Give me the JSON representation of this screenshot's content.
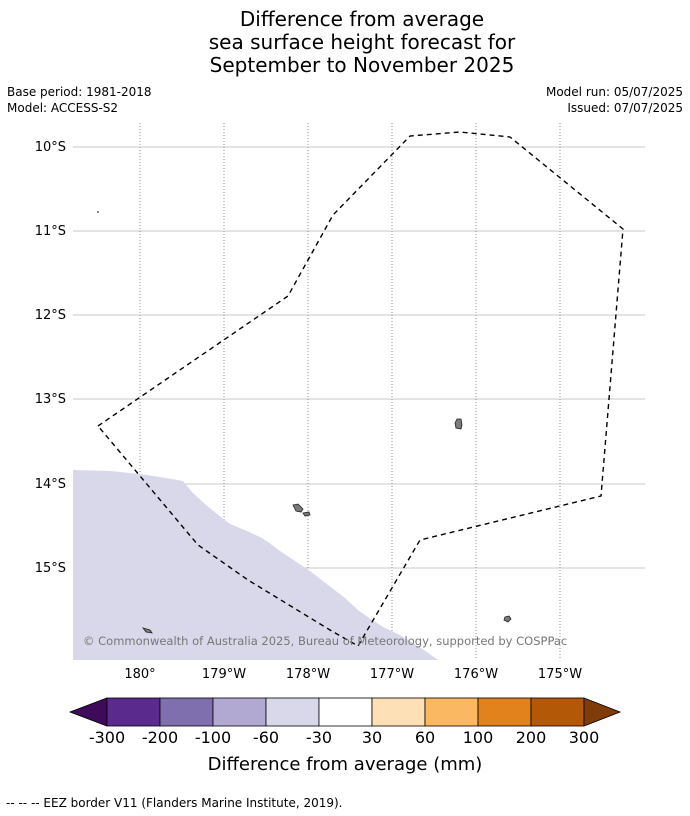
{
  "title": {
    "line1": "Difference from average",
    "line2": "sea surface height forecast for",
    "line3": "September to November 2025"
  },
  "meta": {
    "base_period": "Base period: 1981-2018",
    "model": "Model: ACCESS-S2",
    "model_run": "Model run: 05/07/2025",
    "issued": "Issued: 07/07/2025"
  },
  "map": {
    "lat_labels": [
      "10°S",
      "11°S",
      "12°S",
      "13°S",
      "14°S",
      "15°S"
    ],
    "lon_labels": [
      "180°",
      "179°W",
      "178°W",
      "177°W",
      "176°W",
      "175°W"
    ],
    "copyright": "© Commonwealth of Australia 2025, Bureau of Meteorology, supported by COSPPac",
    "anomaly_fill_color": "#d8d8ea",
    "land_color": "#7a7a7a"
  },
  "colorbar": {
    "labels": [
      "-300",
      "-200",
      "-100",
      "-60",
      "-30",
      "30",
      "60",
      "100",
      "200",
      "300"
    ],
    "colors": [
      "#3f0a5a",
      "#5a2a8c",
      "#7f6fae",
      "#b1a9d2",
      "#d8d8ea",
      "#ffffff",
      "#fde0b6",
      "#fbb862",
      "#e2821c",
      "#b35806",
      "#7f3b08"
    ],
    "label": "Difference from average (mm)"
  },
  "footnote": "--  --  -- EEZ border V11 (Flanders Marine Institute, 2019)."
}
